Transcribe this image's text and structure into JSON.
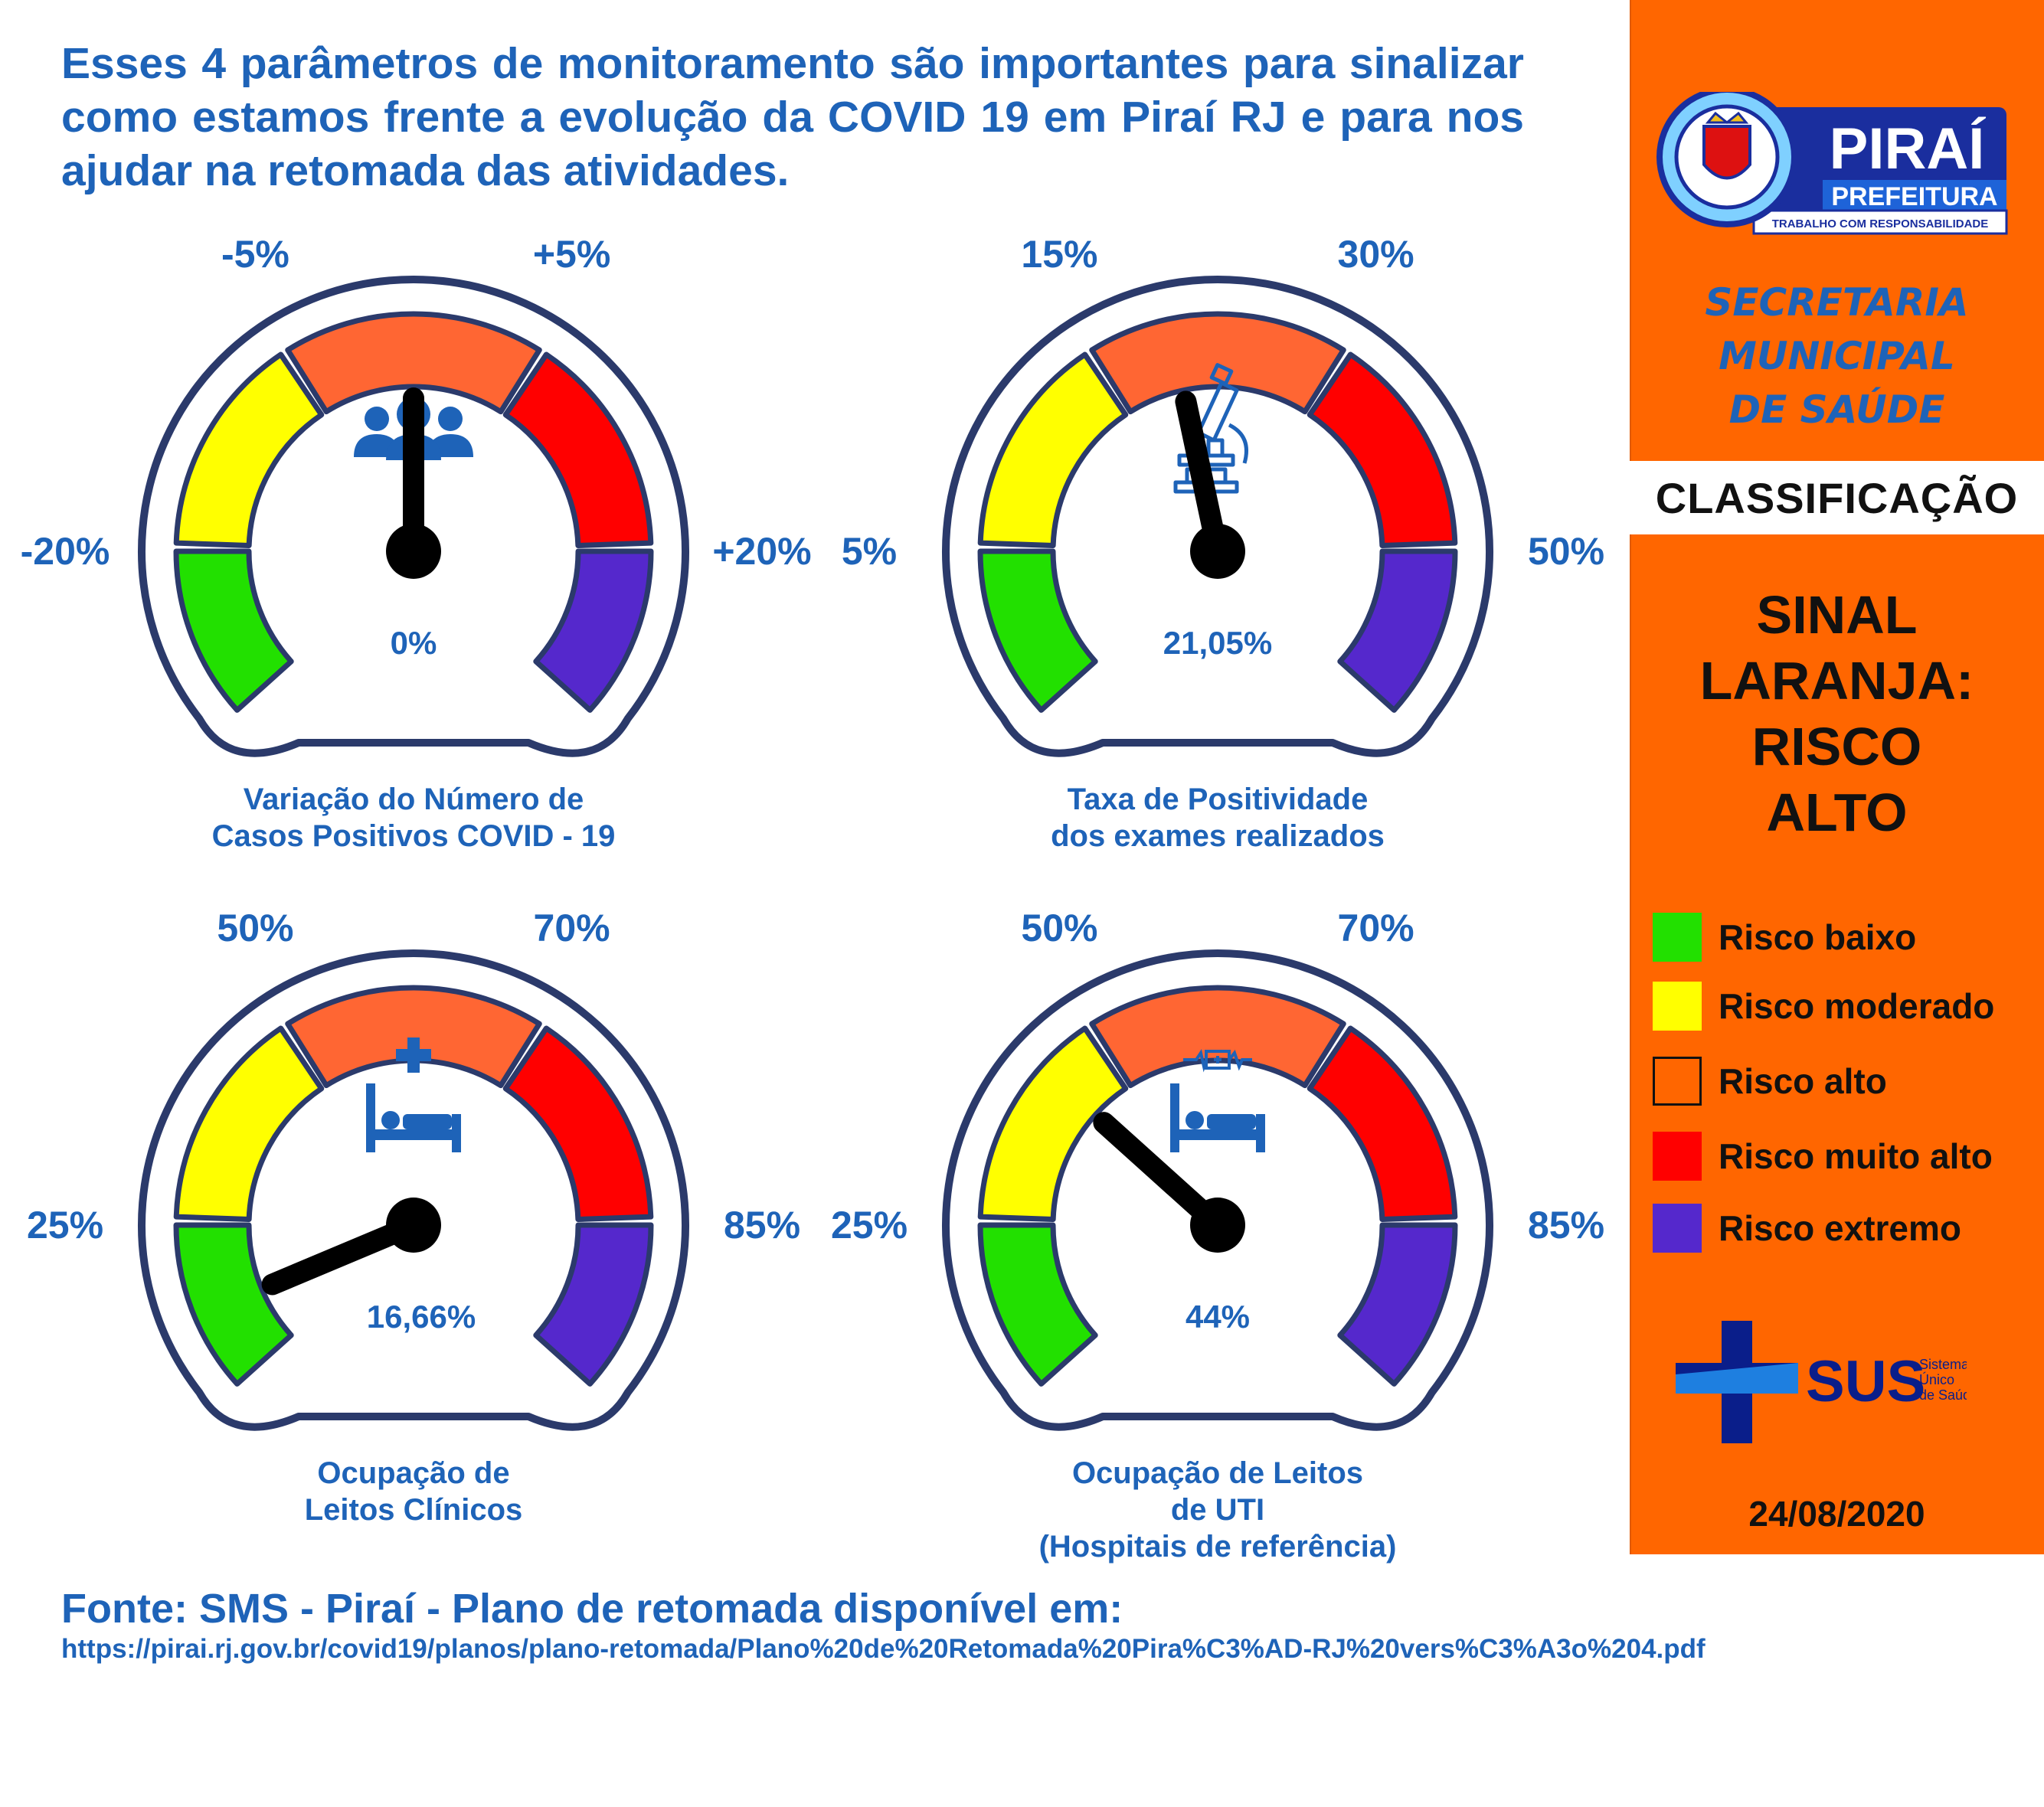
{
  "headline": "Esses 4 parâmetros de monitoramento são importantes para sinalizar como estamos frente a evolução da COVID 19 em Piraí RJ e para nos ajudar na retomada das atividades.",
  "colors": {
    "primary_blue": "#1e63b8",
    "outline": "#2b3a6b",
    "green": "#22e000",
    "yellow": "#ffff00",
    "orange": "#ff6633",
    "red": "#ff0000",
    "purple": "#5528cc",
    "panel_orange": "#ff6600"
  },
  "gauges": [
    {
      "id": "casos",
      "icon": "people-group-icon",
      "labels": {
        "low_left": "-20%",
        "top_left": "-5%",
        "top_right": "+5%",
        "low_right": "+20%"
      },
      "value_text": "0%",
      "needle_fraction": 0.5,
      "title_lines": [
        "Variação do Número de",
        "Casos Positivos COVID - 19"
      ]
    },
    {
      "id": "positividade",
      "icon": "microscope-icon",
      "labels": {
        "low_left": "5%",
        "top_left": "15%",
        "top_right": "30%",
        "low_right": "50%"
      },
      "value_text": "21,05%",
      "needle_fraction": 0.45,
      "title_lines": [
        "Taxa de Positividade",
        "dos exames realizados"
      ]
    },
    {
      "id": "leitos-clinicos",
      "icon": "hospital-bed-icon",
      "labels": {
        "low_left": "25%",
        "top_left": "50%",
        "top_right": "70%",
        "low_right": "85%"
      },
      "value_text": "16,66%",
      "needle_fraction": 0.03,
      "title_lines": [
        "Ocupação de",
        "Leitos Clínicos"
      ]
    },
    {
      "id": "leitos-uti",
      "icon": "icu-bed-icon",
      "labels": {
        "low_left": "25%",
        "top_left": "50%",
        "top_right": "70%",
        "low_right": "85%"
      },
      "value_text": "44%",
      "needle_fraction": 0.3,
      "title_lines": [
        "Ocupação de Leitos",
        "de UTI",
        "(Hospitais de referência)"
      ]
    }
  ],
  "panel": {
    "logo": {
      "name": "PIRAÍ",
      "sub": "PREFEITURA",
      "motto": "TRABALHO COM RESPONSABILIDADE"
    },
    "secretaria_lines": [
      "SECRETARIA",
      "MUNICIPAL",
      "DE SAÚDE"
    ],
    "classification_heading": "CLASSIFICAÇÃO",
    "signal_lines": [
      "SINAL",
      "LARANJA:",
      "RISCO",
      "ALTO"
    ],
    "legend": [
      {
        "label": "Risco baixo",
        "color": "#22e000"
      },
      {
        "label": "Risco moderado",
        "color": "#ffff00"
      },
      {
        "label": "Risco alto",
        "color": "#ff6600"
      },
      {
        "label": "Risco muito alto",
        "color": "#ff0000"
      },
      {
        "label": "Risco extremo",
        "color": "#5528cc"
      }
    ],
    "sus": {
      "name": "SUS",
      "line1": "Sistema",
      "line2": "Único",
      "line3": "de Saúde"
    },
    "date": "24/08/2020"
  },
  "source": {
    "line": "Fonte: SMS - Piraí - Plano de retomada disponível em:",
    "url": "https://pirai.rj.gov.br/covid19/planos/plano-retomada/Plano%20de%20Retomada%20Pira%C3%AD-RJ%20vers%C3%A3o%204.pdf"
  }
}
